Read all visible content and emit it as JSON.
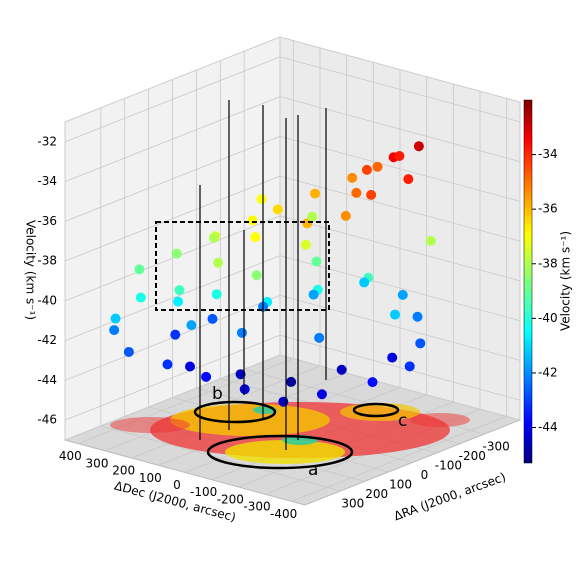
{
  "chart_data": {
    "type": "scatter3d",
    "xlabel": "ΔDec (J2000, arcsec)",
    "ylabel": "ΔRA (J2000, arcsec)",
    "zlabel": "Velocity (km s⁻¹)",
    "x": [
      -250,
      -200,
      -150,
      -300,
      -100,
      -50,
      -250,
      -150,
      0,
      -200,
      50,
      100,
      -100,
      150,
      200,
      250,
      50,
      300,
      100,
      350,
      200,
      0,
      -50,
      300,
      350,
      250,
      150,
      50,
      -50,
      -150,
      -250,
      400,
      300,
      200,
      100,
      0,
      -100,
      -200,
      -300,
      -350,
      -300,
      -200,
      -100,
      0,
      100,
      200,
      300,
      350,
      250,
      150,
      50,
      -50,
      -150,
      100,
      -100,
      200,
      -250,
      0,
      150,
      250
    ],
    "y": [
      -250,
      -200,
      -280,
      -150,
      -200,
      -300,
      -50,
      -100,
      -250,
      0,
      -150,
      -50,
      50,
      0,
      100,
      50,
      100,
      150,
      200,
      250,
      250,
      150,
      0,
      300,
      350,
      200,
      150,
      50,
      -50,
      -150,
      -300,
      300,
      350,
      300,
      250,
      200,
      150,
      100,
      0,
      -100,
      -200,
      -300,
      -350,
      -300,
      -200,
      -100,
      0,
      100,
      150,
      50,
      -50,
      -150,
      -250,
      100,
      0,
      200,
      -150,
      -100,
      -250,
      -150
    ],
    "z": [
      -33,
      -33.5,
      -34,
      -34,
      -34.5,
      -35,
      -34.5,
      -35,
      -35.5,
      -35.5,
      -36,
      -36.5,
      -36,
      -37,
      -37.5,
      -38,
      -37,
      -38.5,
      -38,
      -39,
      -39.5,
      -38.5,
      -37.5,
      -40,
      -41,
      -40.5,
      -40,
      -40.5,
      -40,
      -39.5,
      -38,
      -42,
      -42.5,
      -43,
      -43.5,
      -44,
      -44.5,
      -44,
      -43.5,
      -43,
      -42.5,
      -42,
      -41.5,
      -41,
      -41.5,
      -42,
      -42.5,
      -43,
      -44,
      -44.5,
      -45,
      -44.5,
      -44,
      -42,
      -42,
      -41.5,
      -41,
      -39,
      -38,
      -37
    ],
    "xlim": [
      -450,
      450
    ],
    "ylim": [
      -450,
      450
    ],
    "zlim": [
      -47,
      -31
    ],
    "xticks": [
      400,
      300,
      200,
      100,
      0,
      -100,
      -200,
      -300,
      -400
    ],
    "yticks": [
      300,
      200,
      100,
      0,
      -100,
      -200,
      -300
    ],
    "zticks": [
      -32,
      -34,
      -36,
      -38,
      -40,
      -42,
      -44,
      -46
    ],
    "colormap": "jet",
    "colorbar": {
      "label": "Velocity (km s⁻¹)",
      "lim": [
        -45.3,
        -32
      ],
      "ticks": [
        -34,
        -36,
        -38,
        -40,
        -42,
        -44
      ]
    },
    "annotations": [
      "a",
      "b",
      "c"
    ]
  }
}
